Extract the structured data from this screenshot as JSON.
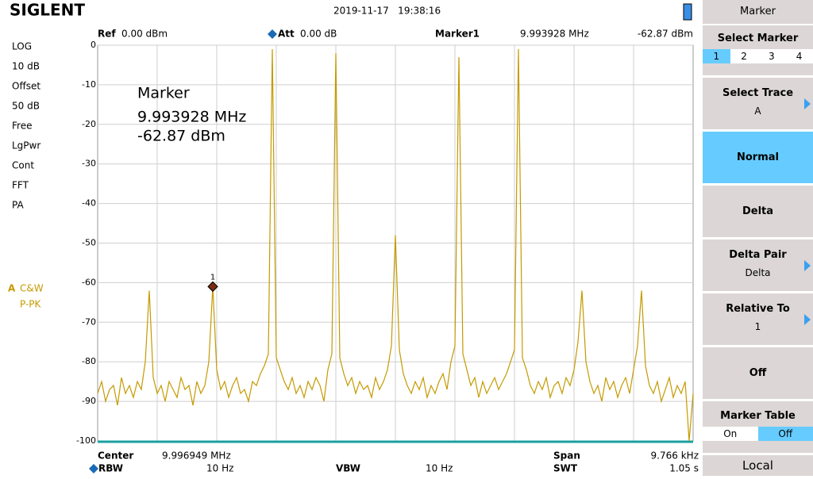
{
  "header": {
    "logo": "SIGLENT",
    "datetime": "2019-11-17   19:38:16"
  },
  "info": {
    "ref_label": "Ref",
    "ref_value": "0.00 dBm",
    "att_label": "Att",
    "att_value": "0.00 dB",
    "marker_label": "Marker1",
    "marker_freq": "9.993928 MHz",
    "marker_level": "-62.87 dBm"
  },
  "left_panel": {
    "items": [
      "LOG",
      "10 dB",
      "Offset",
      "50 dB",
      "Free",
      "LgPwr",
      "Cont",
      "FFT",
      "PA"
    ],
    "trace_name": "A",
    "trace_mode": "C&W",
    "trace_detector": "P-PK"
  },
  "annotation": {
    "title": "Marker",
    "freq": "9.993928 MHz",
    "level": "-62.87 dBm",
    "marker_tag": "1"
  },
  "chart_data": {
    "type": "line",
    "color": "#c49a00",
    "grid": true,
    "ylim": [
      -100,
      0
    ],
    "yticks": [
      0,
      -10,
      -20,
      -30,
      -40,
      -50,
      -60,
      -70,
      -80,
      -90,
      -100
    ],
    "values": [
      -88,
      -85,
      -90,
      -87,
      -86,
      -91,
      -84,
      -88,
      -86,
      -89,
      -85,
      -87,
      -80,
      -62,
      -84,
      -88,
      -86,
      -90,
      -85,
      -87,
      -89,
      -84,
      -87,
      -86,
      -91,
      -85,
      -88,
      -86,
      -80,
      -61,
      -82,
      -87,
      -85,
      -89,
      -86,
      -84,
      -88,
      -87,
      -90,
      -85,
      -86,
      -83,
      -81,
      -78,
      -1,
      -79,
      -82,
      -85,
      -87,
      -84,
      -88,
      -86,
      -89,
      -85,
      -87,
      -84,
      -86,
      -90,
      -82,
      -78,
      -2,
      -79,
      -83,
      -86,
      -84,
      -88,
      -85,
      -87,
      -86,
      -89,
      -84,
      -87,
      -85,
      -82,
      -76,
      -48,
      -77,
      -83,
      -86,
      -88,
      -85,
      -87,
      -84,
      -89,
      -86,
      -88,
      -85,
      -83,
      -87,
      -80,
      -76,
      -3,
      -78,
      -82,
      -86,
      -84,
      -89,
      -85,
      -88,
      -86,
      -84,
      -87,
      -85,
      -83,
      -80,
      -77,
      -1,
      -79,
      -82,
      -86,
      -88,
      -85,
      -87,
      -84,
      -89,
      -86,
      -85,
      -88,
      -84,
      -86,
      -82,
      -75,
      -62,
      -80,
      -85,
      -88,
      -86,
      -90,
      -84,
      -87,
      -85,
      -89,
      -86,
      -84,
      -88,
      -82,
      -76,
      -62,
      -81,
      -86,
      -88,
      -85,
      -90,
      -87,
      -84,
      -89,
      -86,
      -88,
      -85,
      -100,
      -88
    ]
  },
  "footer": {
    "center_label": "Center",
    "center_value": "9.996949 MHz",
    "span_label": "Span",
    "span_value": "9.766 kHz",
    "rbw_label": "RBW",
    "rbw_value": "10 Hz",
    "vbw_label": "VBW",
    "vbw_value": "10 Hz",
    "swt_label": "SWT",
    "swt_value": "1.05 s"
  },
  "menu": {
    "title": "Marker",
    "select_marker": {
      "label": "Select Marker",
      "options": [
        "1",
        "2",
        "3",
        "4"
      ]
    },
    "select_trace": {
      "label": "Select Trace",
      "value": "A"
    },
    "normal": "Normal",
    "delta": "Delta",
    "delta_pair": {
      "label": "Delta Pair",
      "value": "Delta"
    },
    "relative_to": {
      "label": "Relative To",
      "value": "1"
    },
    "off": "Off",
    "marker_table": {
      "label": "Marker Table",
      "options": [
        "On",
        "Off"
      ]
    },
    "local": "Local"
  }
}
